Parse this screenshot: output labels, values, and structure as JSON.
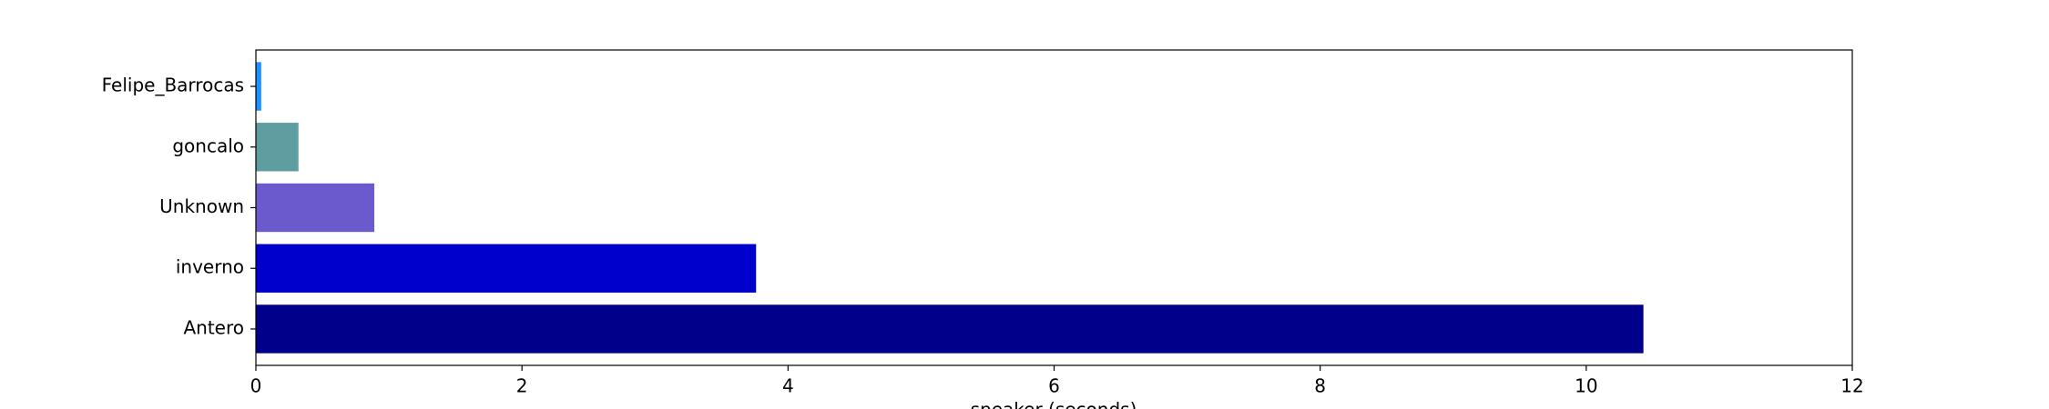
{
  "chart_data": {
    "type": "barh",
    "xlabel": "speaker (seconds)",
    "categories": [
      "Antero",
      "inverno",
      "Unknown",
      "goncalo",
      "Felipe_Barrocas"
    ],
    "values": [
      10.43,
      3.76,
      0.89,
      0.32,
      0.04
    ],
    "colors": [
      "#00008b",
      "#0000cd",
      "#6a5acd",
      "#5f9ea0",
      "#1e90ff"
    ],
    "xlim": [
      0,
      12
    ],
    "xticks": [
      0,
      2,
      4,
      6,
      8,
      10,
      12
    ]
  }
}
